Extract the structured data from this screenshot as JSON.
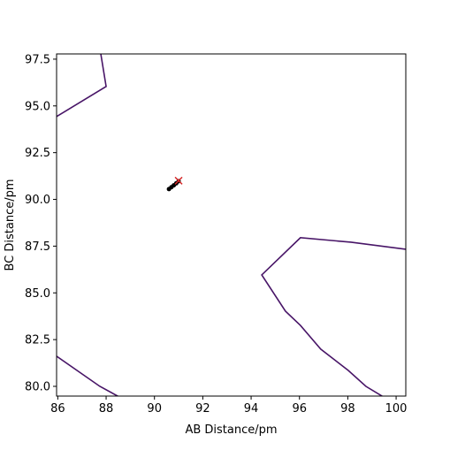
{
  "chart_data": {
    "type": "line",
    "xlabel": "AB Distance/pm",
    "ylabel": "BC Distance/pm",
    "xlim": [
      85.95,
      100.4
    ],
    "ylim": [
      79.48,
      97.78
    ],
    "xticks": [
      86,
      88,
      90,
      92,
      94,
      96,
      98,
      100
    ],
    "yticks": [
      {
        "value": 80,
        "label": "80.0"
      },
      82.5,
      {
        "value": 85,
        "label": "85.0"
      },
      87.5,
      {
        "value": 90,
        "label": "90.0"
      },
      92.5,
      {
        "value": 95,
        "label": "95.0"
      },
      97.5
    ],
    "series": [
      {
        "color": "#481567",
        "marker": "none",
        "x": [
          87.78,
          88.0,
          85.95
        ],
        "values": [
          97.78,
          96.04,
          94.43
        ]
      },
      {
        "color": "#481567",
        "marker": "none",
        "x": [
          100.4,
          98.13,
          96.04,
          94.44,
          95.42,
          96.04,
          96.88,
          98.02,
          98.75,
          99.48
        ],
        "values": [
          87.33,
          87.71,
          87.95,
          85.96,
          84.02,
          83.26,
          81.99,
          80.85,
          80.0,
          79.43
        ]
      },
      {
        "color": "#481567",
        "marker": "none",
        "x": [
          85.95,
          87.74,
          88.55
        ],
        "values": [
          81.61,
          80.0,
          79.43
        ]
      },
      {
        "color": "#000000",
        "marker": "o",
        "x": [
          90.6,
          90.7,
          90.8,
          90.9,
          91.0
        ],
        "values": [
          90.55,
          90.65,
          90.75,
          90.86,
          90.97
        ]
      },
      {
        "color": "#d62728",
        "marker": "x",
        "x": [
          91.0
        ],
        "values": [
          91.0
        ]
      }
    ]
  }
}
